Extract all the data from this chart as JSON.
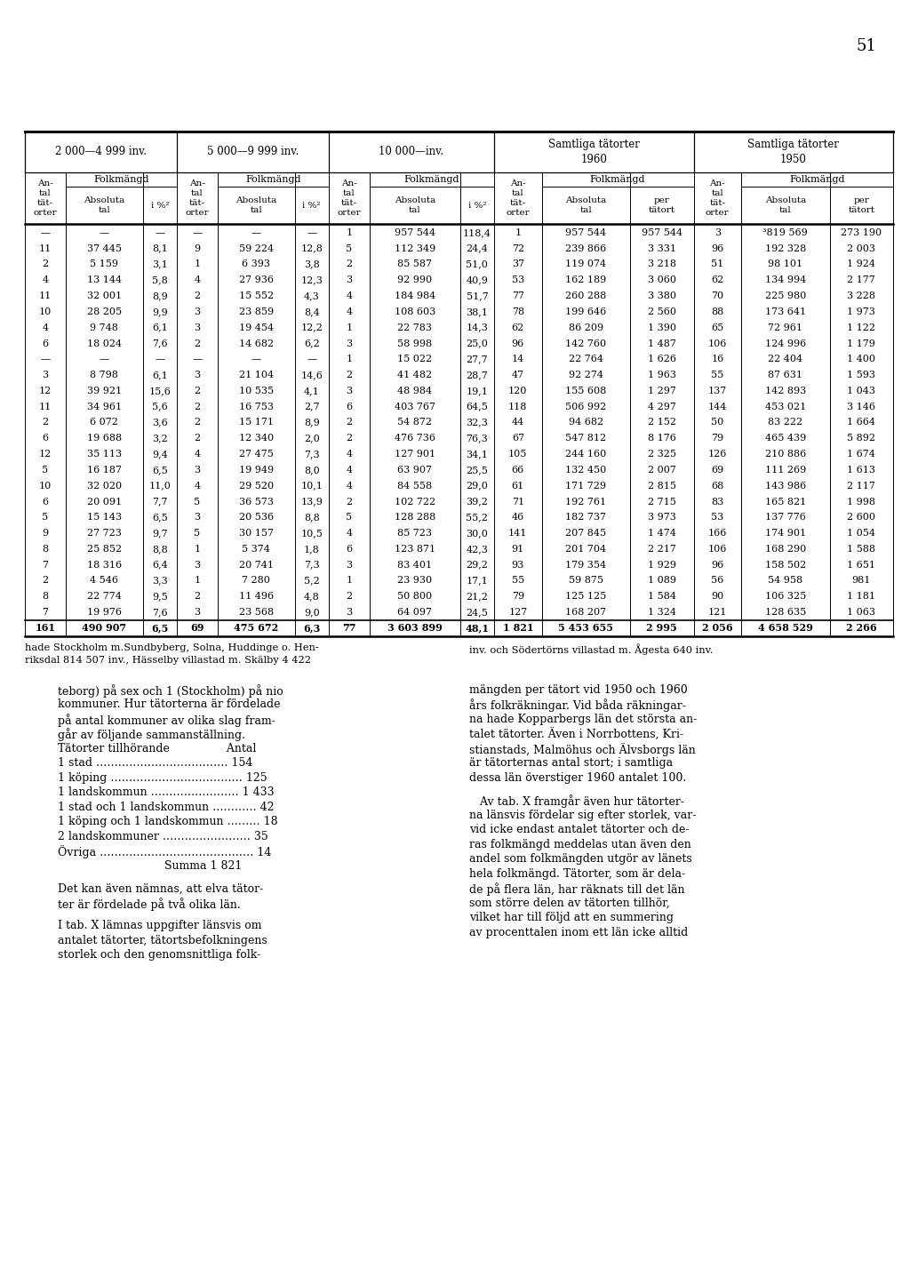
{
  "page_number": "51",
  "group_labels": [
    "2 000—4 999 inv.",
    "5 000—9 999 inv.",
    "10 000—inv.",
    "Samtliga tätorter\n1960",
    "Samtliga tätorter\n1950"
  ],
  "col_subhdrs": [
    "Absoluta\ntal",
    "i %²",
    "Abosluta\ntal",
    "i %²",
    "Absoluta\ntal",
    "i %²",
    "Absoluta\ntal",
    "per\ntätort",
    "Absoluta\ntal",
    "per\ntätort"
  ],
  "rows": [
    [
      "—",
      "—",
      "—",
      "—",
      "—",
      "—",
      "1",
      "957 544",
      "118,4",
      "1",
      "957 544",
      "957 544",
      "3",
      "³819 569",
      "273 190"
    ],
    [
      "11",
      "37 445",
      "8,1",
      "9",
      "59 224",
      "12,8",
      "5",
      "112 349",
      "24,4",
      "72",
      "239 866",
      "3 331",
      "96",
      "192 328",
      "2 003"
    ],
    [
      "2",
      "5 159",
      "3,1",
      "1",
      "6 393",
      "3,8",
      "2",
      "85 587",
      "51,0",
      "37",
      "119 074",
      "3 218",
      "51",
      "98 101",
      "1 924"
    ],
    [
      "4",
      "13 144",
      "5,8",
      "4",
      "27 936",
      "12,3",
      "3",
      "92 990",
      "40,9",
      "53",
      "162 189",
      "3 060",
      "62",
      "134 994",
      "2 177"
    ],
    [
      "11",
      "32 001",
      "8,9",
      "2",
      "15 552",
      "4,3",
      "4",
      "184 984",
      "51,7",
      "77",
      "260 288",
      "3 380",
      "70",
      "225 980",
      "3 228"
    ],
    [
      "10",
      "28 205",
      "9,9",
      "3",
      "23 859",
      "8,4",
      "4",
      "108 603",
      "38,1",
      "78",
      "199 646",
      "2 560",
      "88",
      "173 641",
      "1 973"
    ],
    [
      "4",
      "9 748",
      "6,1",
      "3",
      "19 454",
      "12,2",
      "1",
      "22 783",
      "14,3",
      "62",
      "86 209",
      "1 390",
      "65",
      "72 961",
      "1 122"
    ],
    [
      "6",
      "18 024",
      "7,6",
      "2",
      "14 682",
      "6,2",
      "3",
      "58 998",
      "25,0",
      "96",
      "142 760",
      "1 487",
      "106",
      "124 996",
      "1 179"
    ],
    [
      "—",
      "—",
      "—",
      "—",
      "—",
      "—",
      "1",
      "15 022",
      "27,7",
      "14",
      "22 764",
      "1 626",
      "16",
      "22 404",
      "1 400"
    ],
    [
      "3",
      "8 798",
      "6,1",
      "3",
      "21 104",
      "14,6",
      "2",
      "41 482",
      "28,7",
      "47",
      "92 274",
      "1 963",
      "55",
      "87 631",
      "1 593"
    ],
    [
      "12",
      "39 921",
      "15,6",
      "2",
      "10 535",
      "4,1",
      "3",
      "48 984",
      "19,1",
      "120",
      "155 608",
      "1 297",
      "137",
      "142 893",
      "1 043"
    ],
    [
      "11",
      "34 961",
      "5,6",
      "2",
      "16 753",
      "2,7",
      "6",
      "403 767",
      "64,5",
      "118",
      "506 992",
      "4 297",
      "144",
      "453 021",
      "3 146"
    ],
    [
      "2",
      "6 072",
      "3,6",
      "2",
      "15 171",
      "8,9",
      "2",
      "54 872",
      "32,3",
      "44",
      "94 682",
      "2 152",
      "50",
      "83 222",
      "1 664"
    ],
    [
      "6",
      "19 688",
      "3,2",
      "2",
      "12 340",
      "2,0",
      "2",
      "476 736",
      "76,3",
      "67",
      "547 812",
      "8 176",
      "79",
      "465 439",
      "5 892"
    ],
    [
      "12",
      "35 113",
      "9,4",
      "4",
      "27 475",
      "7,3",
      "4",
      "127 901",
      "34,1",
      "105",
      "244 160",
      "2 325",
      "126",
      "210 886",
      "1 674"
    ],
    [
      "5",
      "16 187",
      "6,5",
      "3",
      "19 949",
      "8,0",
      "4",
      "63 907",
      "25,5",
      "66",
      "132 450",
      "2 007",
      "69",
      "111 269",
      "1 613"
    ],
    [
      "10",
      "32 020",
      "11,0",
      "4",
      "29 520",
      "10,1",
      "4",
      "84 558",
      "29,0",
      "61",
      "171 729",
      "2 815",
      "68",
      "143 986",
      "2 117"
    ],
    [
      "6",
      "20 091",
      "7,7",
      "5",
      "36 573",
      "13,9",
      "2",
      "102 722",
      "39,2",
      "71",
      "192 761",
      "2 715",
      "83",
      "165 821",
      "1 998"
    ],
    [
      "5",
      "15 143",
      "6,5",
      "3",
      "20 536",
      "8,8",
      "5",
      "128 288",
      "55,2",
      "46",
      "182 737",
      "3 973",
      "53",
      "137 776",
      "2 600"
    ],
    [
      "9",
      "27 723",
      "9,7",
      "5",
      "30 157",
      "10,5",
      "4",
      "85 723",
      "30,0",
      "141",
      "207 845",
      "1 474",
      "166",
      "174 901",
      "1 054"
    ],
    [
      "8",
      "25 852",
      "8,8",
      "1",
      "5 374",
      "1,8",
      "6",
      "123 871",
      "42,3",
      "91",
      "201 704",
      "2 217",
      "106",
      "168 290",
      "1 588"
    ],
    [
      "7",
      "18 316",
      "6,4",
      "3",
      "20 741",
      "7,3",
      "3",
      "83 401",
      "29,2",
      "93",
      "179 354",
      "1 929",
      "96",
      "158 502",
      "1 651"
    ],
    [
      "2",
      "4 546",
      "3,3",
      "1",
      "7 280",
      "5,2",
      "1",
      "23 930",
      "17,1",
      "55",
      "59 875",
      "1 089",
      "56",
      "54 958",
      "981"
    ],
    [
      "8",
      "22 774",
      "9,5",
      "2",
      "11 496",
      "4,8",
      "2",
      "50 800",
      "21,2",
      "79",
      "125 125",
      "1 584",
      "90",
      "106 325",
      "1 181"
    ],
    [
      "7",
      "19 976",
      "7,6",
      "3",
      "23 568",
      "9,0",
      "3",
      "64 097",
      "24,5",
      "127",
      "168 207",
      "1 324",
      "121",
      "128 635",
      "1 063"
    ]
  ],
  "total_row": [
    "161",
    "490 907",
    "6,5",
    "69",
    "475 672",
    "6,3",
    "77",
    "3 603 899",
    "48,1",
    "1 821",
    "5 453 655",
    "2 995",
    "2 056",
    "4 658 529",
    "2 266"
  ],
  "footnote_left": "hade Stockholm m.Sundbyberg, Solna, Huddinge o. Hen-",
  "footnote_left2": "riksdal 814 507 inv., Hässelby villastad m. Skälby 4 422",
  "footnote_right": "inv. och Södertörns villastad m. Ågesta 640 inv.",
  "text_left_lines": [
    "teborg) på sex och 1 (Stockholm) på nio",
    "kommuner. Hur tätorterna är fördelade",
    "på antal kommuner av olika slag fram-",
    "går av följande sammanställning.",
    "Tätorter tillhörande                Antal",
    "1 stad ……………………………… 154",
    "1 köping ……………………………… 125",
    "1 landskommun …………………… 1 433",
    "1 stad och 1 landskommun ………… 42",
    "1 köping och 1 landskommun ……… 18",
    "2 landskommuner …………………… 35",
    "Övriga …………………………………… 14",
    "                              Summa 1 821",
    "",
    "Det kan även nämnas, att elva tätor-",
    "ter är fördelade på två olika län.",
    "",
    "I tab. X lämnas uppgifter länsvis om",
    "antalet tätorter, tätortsbefolkningens",
    "storlek och den genomsnittliga folk-"
  ],
  "text_right_lines": [
    "mängden per tätort vid 1950 och 1960",
    "års folkräkningar. Vid båda räkningar-",
    "na hade Kopparbergs län det största an-",
    "talet tätorter. Även i Norrbottens, Kri-",
    "stianstads, Malmöhus och Älvsborgs län",
    "är tätorternas antal stort; i samtliga",
    "dessa län överstiger 1960 antalet 100.",
    "",
    "   Av tab. X framgår även hur tätorter-",
    "na länsvis fördelar sig efter storlek, var-",
    "vid icke endast antalet tätorter och de-",
    "ras folkmängd meddelas utan även den",
    "andel som folkmängden utgör av länets",
    "hela folkmängd. Tätorter, som är dela-",
    "de på flera län, har räknats till det län",
    "som större delen av tätorten tillhör,",
    "vilket har till följd att en summering",
    "av procenttalen inom ett län icke alltid"
  ]
}
